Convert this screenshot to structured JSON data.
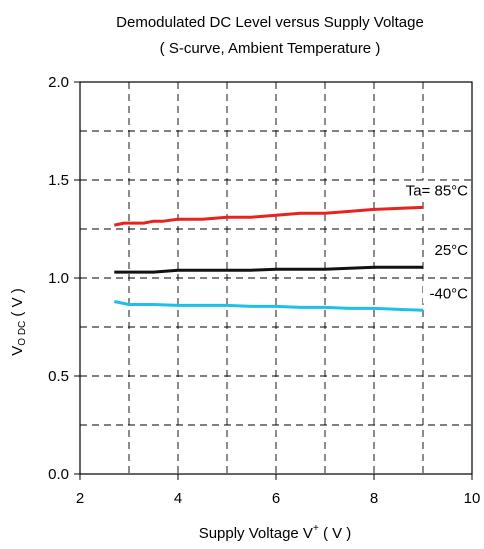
{
  "chart_data": {
    "type": "line",
    "title": "Demodulated DC Level  versus Supply Voltage",
    "subtitle": "( S-curve, Ambient Temperature )",
    "xlabel": {
      "main": "Supply Voltage V",
      "sup": "+",
      "unit": " ( V )"
    },
    "ylabel": {
      "main": "V",
      "sub": "O DC",
      "unit": " ( V )"
    },
    "xlim": [
      2,
      10
    ],
    "ylim": [
      0.0,
      2.0
    ],
    "x_ticks": [
      2,
      4,
      6,
      8,
      10
    ],
    "x_tick_labels": [
      "2",
      "4",
      "6",
      "8",
      "10"
    ],
    "y_ticks": [
      0.0,
      0.5,
      1.0,
      1.5,
      2.0
    ],
    "y_tick_labels": [
      "0.0",
      "0.5",
      "1.0",
      "1.5",
      "2.0"
    ],
    "grid": "dashed, every 0.25 V and every 1 V",
    "series": [
      {
        "name": "Ta= 85°C",
        "color": "#e8231f",
        "x": [
          2.7,
          2.9,
          3.0,
          3.3,
          3.5,
          3.7,
          4.0,
          4.5,
          5.0,
          5.5,
          6.0,
          6.5,
          7.0,
          7.5,
          8.0,
          8.5,
          9.0
        ],
        "y": [
          1.27,
          1.28,
          1.28,
          1.28,
          1.29,
          1.29,
          1.3,
          1.3,
          1.31,
          1.31,
          1.32,
          1.33,
          1.33,
          1.34,
          1.35,
          1.355,
          1.36
        ]
      },
      {
        "name": "25°C",
        "color": "#111111",
        "x": [
          2.7,
          3.0,
          3.5,
          4.0,
          4.5,
          5.0,
          5.5,
          6.0,
          6.5,
          7.0,
          7.5,
          8.0,
          8.5,
          9.0
        ],
        "y": [
          1.03,
          1.03,
          1.03,
          1.04,
          1.04,
          1.04,
          1.04,
          1.045,
          1.045,
          1.045,
          1.05,
          1.055,
          1.055,
          1.055
        ]
      },
      {
        "name": "-40°C",
        "color": "#1cc0e8",
        "x": [
          2.7,
          2.9,
          3.0,
          3.5,
          4.0,
          4.5,
          5.0,
          5.5,
          6.0,
          6.5,
          7.0,
          7.5,
          8.0,
          8.5,
          9.0
        ],
        "y": [
          0.88,
          0.87,
          0.865,
          0.865,
          0.86,
          0.86,
          0.86,
          0.855,
          0.855,
          0.85,
          0.85,
          0.845,
          0.845,
          0.84,
          0.835
        ]
      }
    ]
  }
}
